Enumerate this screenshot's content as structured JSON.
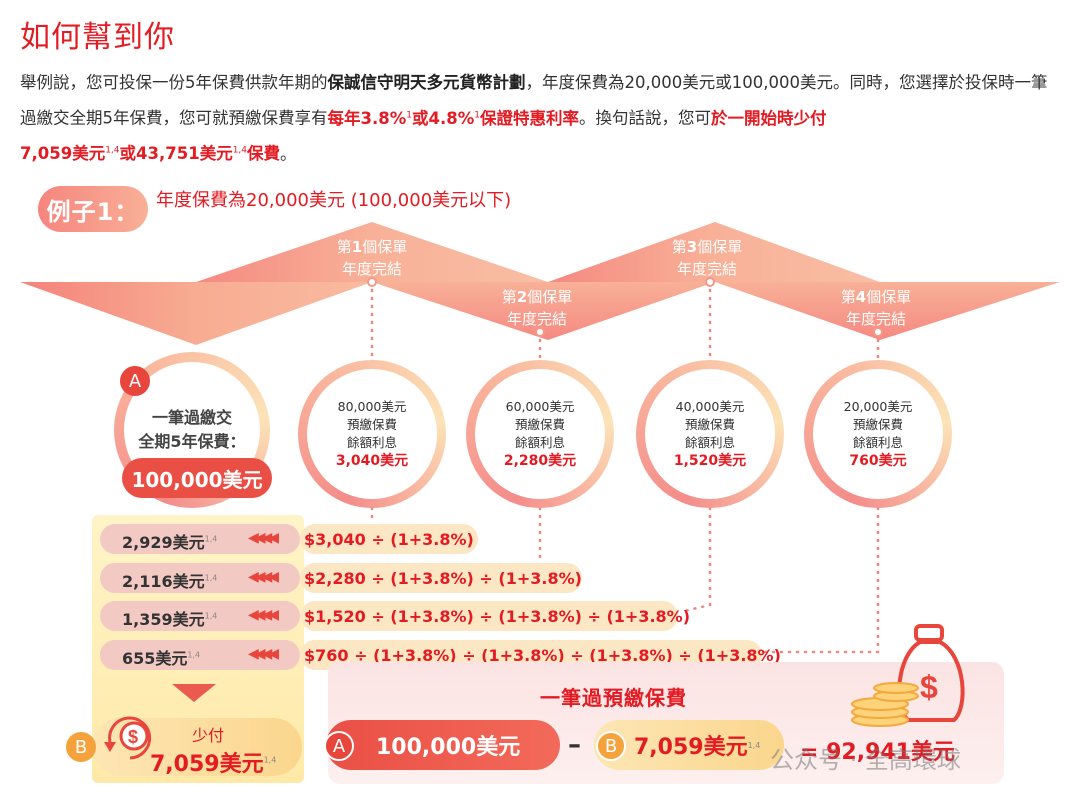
{
  "title": "如何幫到你",
  "intro": {
    "p1": "舉例說，您可投保一份5年保費供款年期的",
    "plan": "保誠信守明天多元貨幣計劃",
    "p2": "，年度保費為20,000美元或100,000美元。同時，您選擇於投保時一筆過繳交全期5年保費，您可就預繳保費享有",
    "rate1": "每年3.8%",
    "sup1": "1",
    "or": "或",
    "rate2": "4.8%",
    "sup2": "1",
    "rate_label": "保證特惠利率",
    "p3": "。換句話說，您可",
    "save_label": "於一開始時少付",
    "save1": "7,059美元",
    "sup3": "1,4",
    "save_or": "或",
    "save2": "43,751美元",
    "sup4": "1,4",
    "save_tail": "保費",
    "end": "。"
  },
  "example": {
    "pill": "例子1：",
    "desc": "年度保費為20,000美元 (100,000美元以下)"
  },
  "stages": [
    {
      "pre": "第",
      "num": "1",
      "post": "個保單",
      "line2": "年度完結"
    },
    {
      "pre": "第",
      "num": "2",
      "post": "個保單",
      "line2": "年度完結"
    },
    {
      "pre": "第",
      "num": "3",
      "post": "個保單",
      "line2": "年度完結"
    },
    {
      "pre": "第",
      "num": "4",
      "post": "個保單",
      "line2": "年度完結"
    }
  ],
  "circleA": {
    "badge": "A",
    "line1": "一筆過繳交",
    "line2": "全期5年保費：",
    "amount": "100,000美元"
  },
  "circles": [
    {
      "l1": "80,000美元",
      "l2": "預繳保費",
      "l3": "餘額利息",
      "v": "3,040美元"
    },
    {
      "l1": "60,000美元",
      "l2": "預繳保費",
      "l3": "餘額利息",
      "v": "2,280美元"
    },
    {
      "l1": "40,000美元",
      "l2": "預繳保費",
      "l3": "餘額利息",
      "v": "1,520美元"
    },
    {
      "l1": "20,000美元",
      "l2": "預繳保費",
      "l3": "餘額利息",
      "v": "760美元"
    }
  ],
  "rows": [
    {
      "value": "2,929美元",
      "sup": "1,4",
      "formula": "$3,040 ÷ (1+3.8%)"
    },
    {
      "value": "2,116美元",
      "sup": "1,4",
      "formula": "$2,280 ÷ (1+3.8%) ÷ (1+3.8%)"
    },
    {
      "value": "1,359美元",
      "sup": "1,4",
      "formula": "$1,520 ÷ (1+3.8%) ÷ (1+3.8%) ÷ (1+3.8%)"
    },
    {
      "value": "655美元",
      "sup": "1,4",
      "formula": "$760 ÷ (1+3.8%) ÷ (1+3.8%) ÷ (1+3.8%) ÷ (1+3.8%)"
    }
  ],
  "arrows": "◀◀◀◀",
  "bottom": {
    "badgeB": "B",
    "less_label": "少付",
    "less_amount": "7,059美元",
    "less_sup": "1,4",
    "panel_title": "一筆過預繳保費",
    "badgeA": "A",
    "a_amount": "100,000美元",
    "minus": "–",
    "b_amount": "7,059美元",
    "b_sup": "1,4",
    "result": "= 92,941美元"
  },
  "watermark": "公众号 · 全高環球",
  "icons": [
    "money-bag-icon",
    "coin-stack-icon",
    "refund-dollar-icon"
  ],
  "colors": {
    "accent": "#e31b23",
    "coral": "#ea4f45",
    "peach": "#f9b097",
    "cream": "#fde6b4"
  }
}
